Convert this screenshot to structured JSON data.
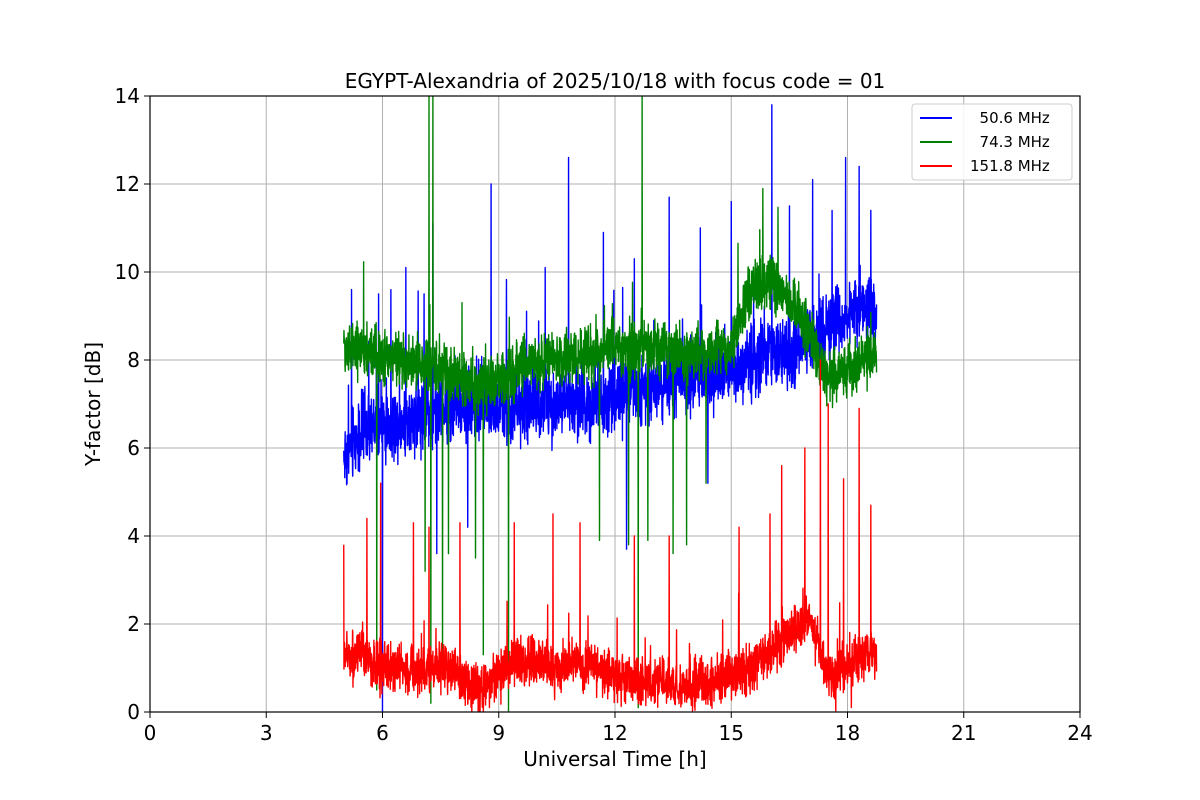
{
  "chart_data": {
    "type": "line",
    "title": "EGYPT-Alexandria of 2025/10/18 with focus code = 01",
    "xlabel": "Universal Time [h]",
    "ylabel": "Y-factor [dB]",
    "xlim": [
      0,
      24
    ],
    "ylim": [
      0,
      14
    ],
    "xticks": [
      0,
      3,
      6,
      9,
      12,
      15,
      18,
      21,
      24
    ],
    "yticks": [
      0,
      2,
      4,
      6,
      8,
      10,
      12,
      14
    ],
    "grid": true,
    "legend_position": "top-right",
    "series": [
      {
        "name": "50.6 MHz",
        "label": "  50.6 MHz",
        "color": "#0000ff",
        "start_hour": 5.0,
        "end_hour": 18.75,
        "baseline": [
          [
            5.0,
            5.8
          ],
          [
            5.5,
            6.4
          ],
          [
            6.0,
            6.5
          ],
          [
            6.5,
            6.6
          ],
          [
            7.0,
            6.8
          ],
          [
            7.5,
            6.9
          ],
          [
            8.0,
            7.0
          ],
          [
            8.5,
            7.1
          ],
          [
            9.0,
            6.9
          ],
          [
            9.5,
            6.8
          ],
          [
            10.0,
            7.0
          ],
          [
            10.5,
            7.0
          ],
          [
            11.0,
            7.0
          ],
          [
            11.5,
            7.1
          ],
          [
            12.0,
            7.2
          ],
          [
            12.5,
            7.3
          ],
          [
            13.0,
            7.4
          ],
          [
            13.5,
            7.5
          ],
          [
            14.0,
            7.6
          ],
          [
            14.5,
            7.7
          ],
          [
            15.0,
            7.8
          ],
          [
            15.5,
            8.0
          ],
          [
            16.0,
            8.2
          ],
          [
            16.5,
            8.1
          ],
          [
            17.0,
            8.4
          ],
          [
            17.5,
            8.8
          ],
          [
            18.0,
            9.0
          ],
          [
            18.5,
            9.2
          ],
          [
            18.75,
            9.0
          ]
        ],
        "noise": 1.2,
        "peaks": [
          [
            5.2,
            9.6
          ],
          [
            5.9,
            9.5
          ],
          [
            6.6,
            10.1
          ],
          [
            7.3,
            11.1
          ],
          [
            8.8,
            12.0
          ],
          [
            10.2,
            10.1
          ],
          [
            10.8,
            12.6
          ],
          [
            11.7,
            10.9
          ],
          [
            12.5,
            10.3
          ],
          [
            13.4,
            11.7
          ],
          [
            14.2,
            11.0
          ],
          [
            15.0,
            11.6
          ],
          [
            16.05,
            13.8
          ],
          [
            16.5,
            11.5
          ],
          [
            17.1,
            12.1
          ],
          [
            17.6,
            11.4
          ],
          [
            17.95,
            12.6
          ],
          [
            18.3,
            12.4
          ],
          [
            18.6,
            11.4
          ]
        ],
        "dips": [
          [
            6.0,
            0.0
          ],
          [
            7.4,
            3.6
          ],
          [
            8.2,
            4.2
          ],
          [
            12.3,
            3.7
          ],
          [
            14.4,
            5.2
          ]
        ]
      },
      {
        "name": "74.3 MHz",
        "label": "  74.3 MHz",
        "color": "#008000",
        "start_hour": 5.0,
        "end_hour": 18.75,
        "baseline": [
          [
            5.0,
            8.3
          ],
          [
            5.5,
            8.2
          ],
          [
            6.0,
            8.1
          ],
          [
            6.5,
            8.0
          ],
          [
            7.0,
            7.9
          ],
          [
            7.5,
            7.8
          ],
          [
            8.0,
            7.6
          ],
          [
            8.5,
            7.4
          ],
          [
            9.0,
            7.5
          ],
          [
            9.5,
            7.8
          ],
          [
            10.0,
            8.0
          ],
          [
            10.5,
            8.0
          ],
          [
            11.0,
            8.1
          ],
          [
            11.5,
            8.2
          ],
          [
            12.0,
            8.3
          ],
          [
            12.5,
            8.3
          ],
          [
            13.0,
            8.3
          ],
          [
            13.5,
            8.2
          ],
          [
            14.0,
            8.2
          ],
          [
            14.5,
            8.2
          ],
          [
            15.0,
            8.3
          ],
          [
            15.5,
            9.6
          ],
          [
            16.0,
            9.8
          ],
          [
            16.5,
            9.4
          ],
          [
            17.0,
            8.6
          ],
          [
            17.5,
            7.6
          ],
          [
            18.0,
            7.8
          ],
          [
            18.5,
            8.0
          ],
          [
            18.75,
            8.2
          ]
        ],
        "noise": 0.9,
        "peaks": [
          [
            7.2,
            14.0
          ],
          [
            7.3,
            14.0
          ],
          [
            12.7,
            14.0
          ]
        ],
        "dips": [
          [
            5.85,
            0.5
          ],
          [
            7.1,
            3.2
          ],
          [
            7.25,
            0.2
          ],
          [
            7.55,
            1.0
          ],
          [
            7.7,
            3.6
          ],
          [
            8.4,
            3.5
          ],
          [
            8.6,
            1.3
          ],
          [
            9.25,
            0.0
          ],
          [
            11.6,
            3.9
          ],
          [
            12.35,
            3.8
          ],
          [
            12.6,
            0.1
          ],
          [
            12.85,
            3.9
          ],
          [
            13.5,
            3.6
          ],
          [
            13.85,
            3.8
          ],
          [
            14.35,
            5.2
          ]
        ]
      },
      {
        "name": "151.8 MHz",
        "label": "151.8 MHz",
        "color": "#ff0000",
        "start_hour": 5.0,
        "end_hour": 18.75,
        "baseline": [
          [
            5.0,
            1.3
          ],
          [
            5.5,
            1.2
          ],
          [
            6.0,
            1.0
          ],
          [
            6.5,
            1.0
          ],
          [
            7.0,
            0.9
          ],
          [
            7.5,
            1.1
          ],
          [
            8.0,
            0.8
          ],
          [
            8.5,
            0.5
          ],
          [
            9.0,
            0.9
          ],
          [
            9.5,
            1.1
          ],
          [
            10.0,
            1.1
          ],
          [
            10.5,
            1.0
          ],
          [
            11.0,
            1.1
          ],
          [
            11.5,
            1.0
          ],
          [
            12.0,
            0.8
          ],
          [
            12.5,
            0.7
          ],
          [
            13.0,
            0.7
          ],
          [
            13.5,
            0.6
          ],
          [
            14.0,
            0.6
          ],
          [
            14.5,
            0.7
          ],
          [
            15.0,
            0.8
          ],
          [
            15.5,
            1.0
          ],
          [
            16.0,
            1.4
          ],
          [
            16.5,
            1.8
          ],
          [
            17.0,
            2.2
          ],
          [
            17.5,
            0.8
          ],
          [
            18.0,
            1.0
          ],
          [
            18.5,
            1.4
          ],
          [
            18.75,
            1.3
          ]
        ],
        "noise": 0.8,
        "peaks": [
          [
            5.0,
            3.8
          ],
          [
            5.6,
            4.4
          ],
          [
            5.95,
            5.2
          ],
          [
            6.8,
            4.3
          ],
          [
            7.2,
            4.2
          ],
          [
            8.0,
            4.3
          ],
          [
            9.4,
            4.3
          ],
          [
            10.4,
            4.5
          ],
          [
            11.1,
            4.3
          ],
          [
            12.5,
            4.0
          ],
          [
            13.4,
            4.0
          ],
          [
            15.2,
            4.2
          ],
          [
            16.0,
            4.5
          ],
          [
            16.3,
            5.6
          ],
          [
            16.9,
            6.0
          ],
          [
            17.3,
            8.0
          ],
          [
            17.5,
            7.0
          ],
          [
            17.9,
            5.3
          ],
          [
            18.3,
            6.9
          ],
          [
            18.6,
            4.7
          ]
        ],
        "dips": [
          [
            8.6,
            0.0
          ],
          [
            17.7,
            0.0
          ],
          [
            18.1,
            0.1
          ]
        ]
      }
    ]
  }
}
